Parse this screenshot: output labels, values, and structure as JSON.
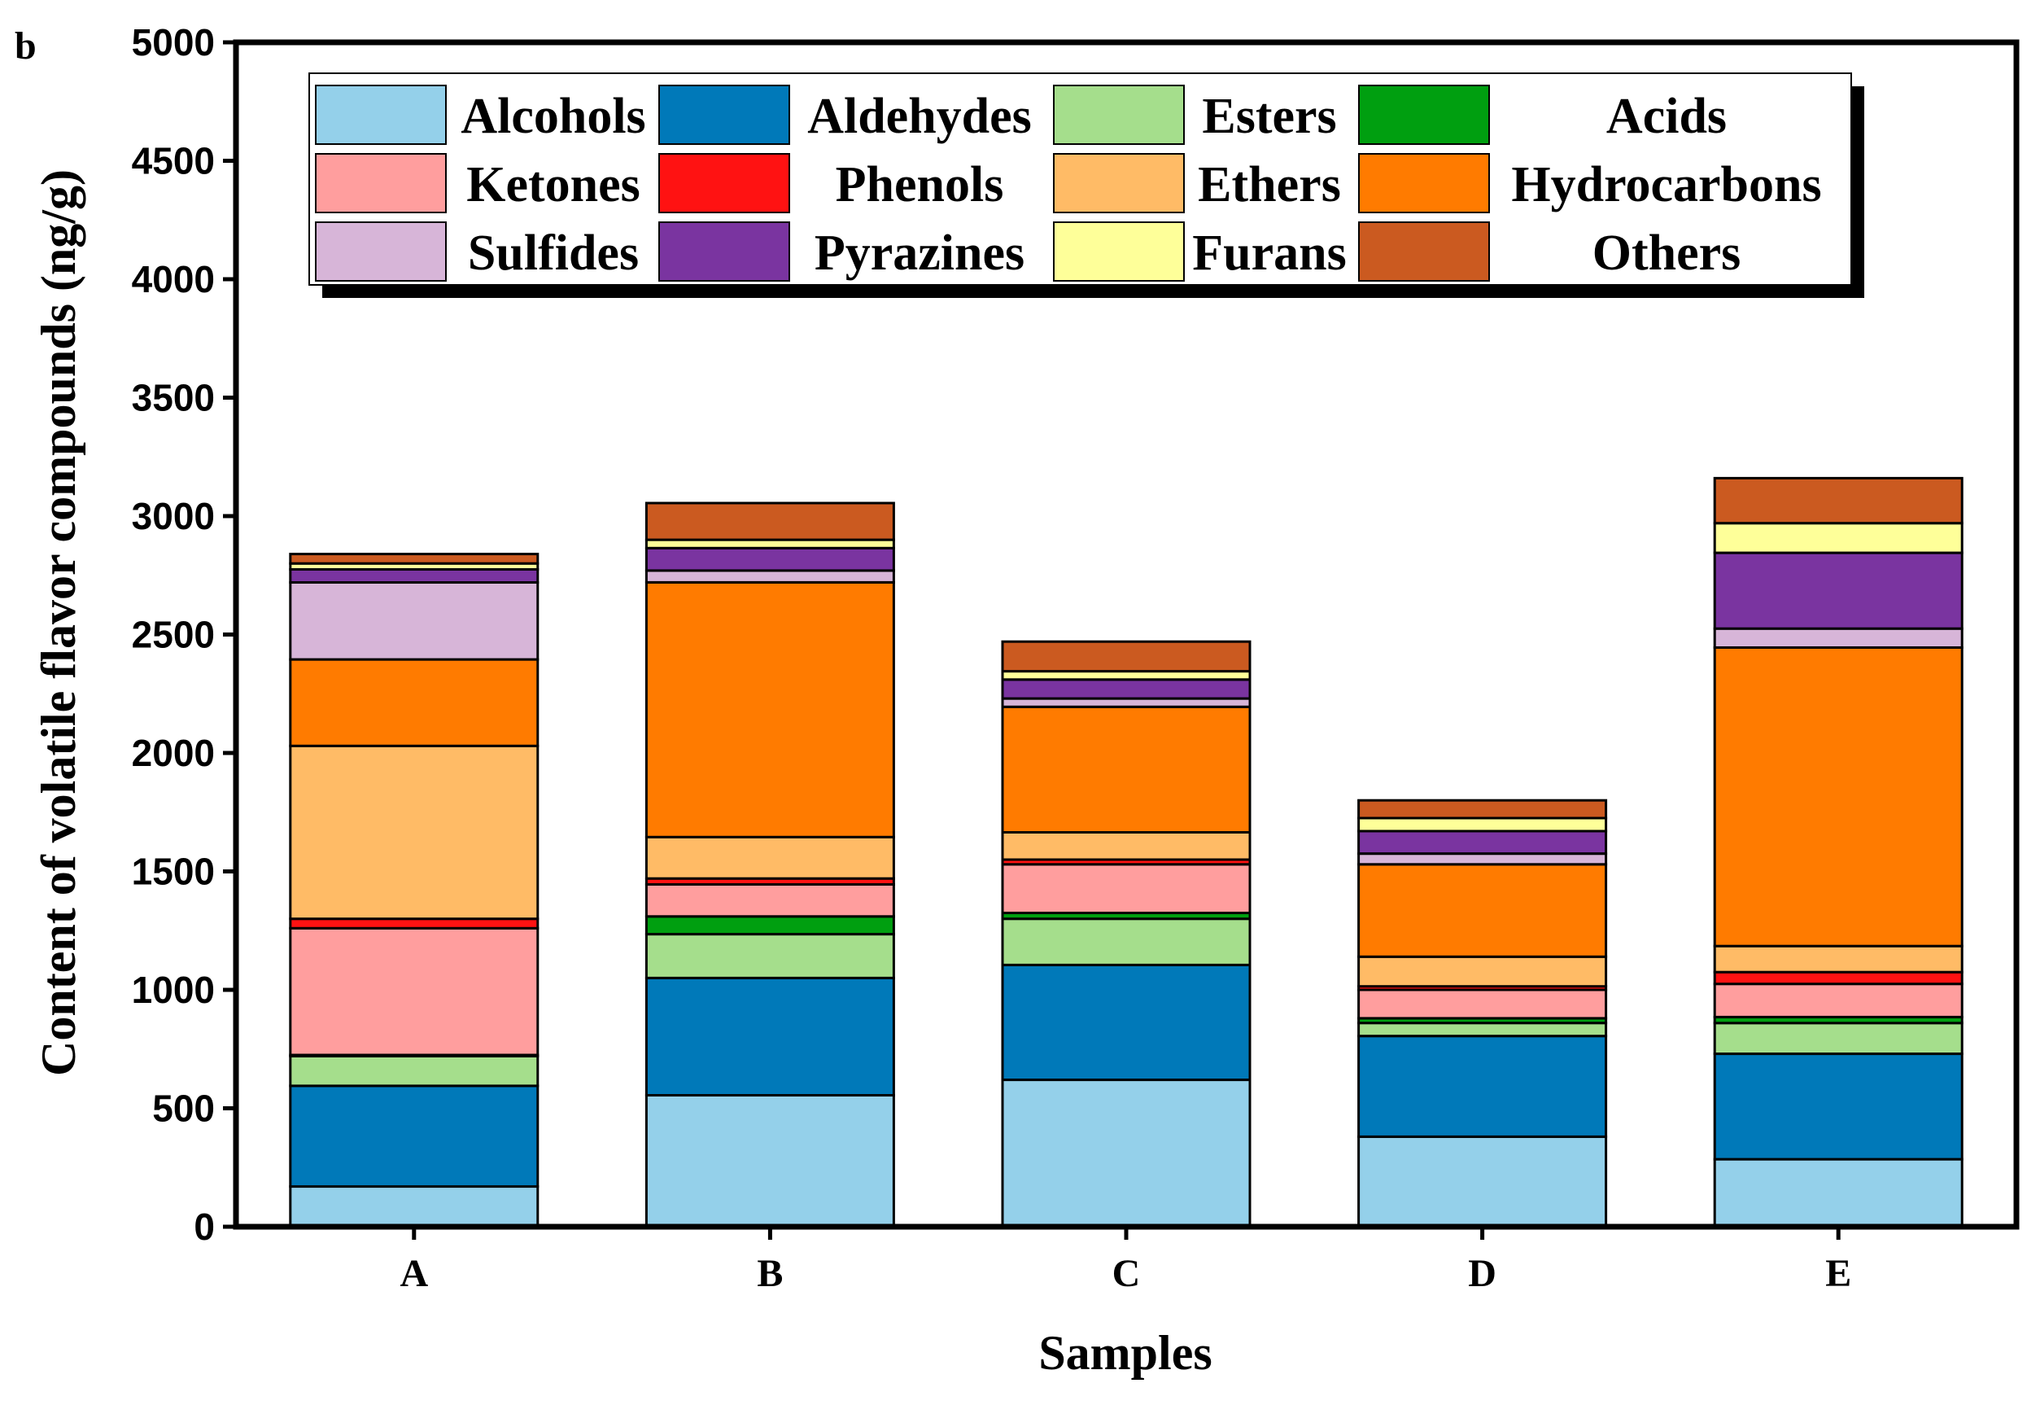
{
  "panel_label": "b",
  "chart_data": {
    "type": "bar",
    "stacked": true,
    "title": "",
    "xlabel": "Samples",
    "ylabel": "Content of volatile flavor compounds (ng/g)",
    "ylim": [
      0,
      5000
    ],
    "yticks": [
      0,
      500,
      1000,
      1500,
      2000,
      2500,
      3000,
      3500,
      4000,
      4500,
      5000
    ],
    "categories": [
      "A",
      "B",
      "C",
      "D",
      "E"
    ],
    "legend_position": "top",
    "series": [
      {
        "name": "Alcohols",
        "color": "#94d0ea",
        "values": [
          170,
          555,
          620,
          380,
          285
        ]
      },
      {
        "name": "Aldehydes",
        "color": "#0079b9",
        "values": [
          425,
          495,
          485,
          425,
          445
        ]
      },
      {
        "name": "Esters",
        "color": "#a5de8c",
        "values": [
          125,
          185,
          195,
          55,
          130
        ]
      },
      {
        "name": "Acids",
        "color": "#009f10",
        "values": [
          5,
          75,
          25,
          20,
          25
        ]
      },
      {
        "name": "Ketones",
        "color": "#ff9e9e",
        "values": [
          535,
          135,
          205,
          120,
          140
        ]
      },
      {
        "name": "Phenols",
        "color": "#ff1212",
        "values": [
          40,
          25,
          20,
          15,
          50
        ]
      },
      {
        "name": "Ethers",
        "color": "#ffbb66",
        "values": [
          730,
          175,
          115,
          125,
          110
        ]
      },
      {
        "name": "Hydrocarbons",
        "color": "#ff7b00",
        "values": [
          365,
          1075,
          530,
          390,
          1260
        ]
      },
      {
        "name": "Sulfides",
        "color": "#d7b5d8",
        "values": [
          325,
          50,
          35,
          45,
          80
        ]
      },
      {
        "name": "Pyrazines",
        "color": "#7a34a0",
        "values": [
          55,
          95,
          80,
          95,
          320
        ]
      },
      {
        "name": "Furans",
        "color": "#feff99",
        "values": [
          25,
          35,
          35,
          55,
          125
        ]
      },
      {
        "name": "Others",
        "color": "#cb5a20",
        "values": [
          40,
          155,
          125,
          75,
          190
        ]
      }
    ]
  }
}
